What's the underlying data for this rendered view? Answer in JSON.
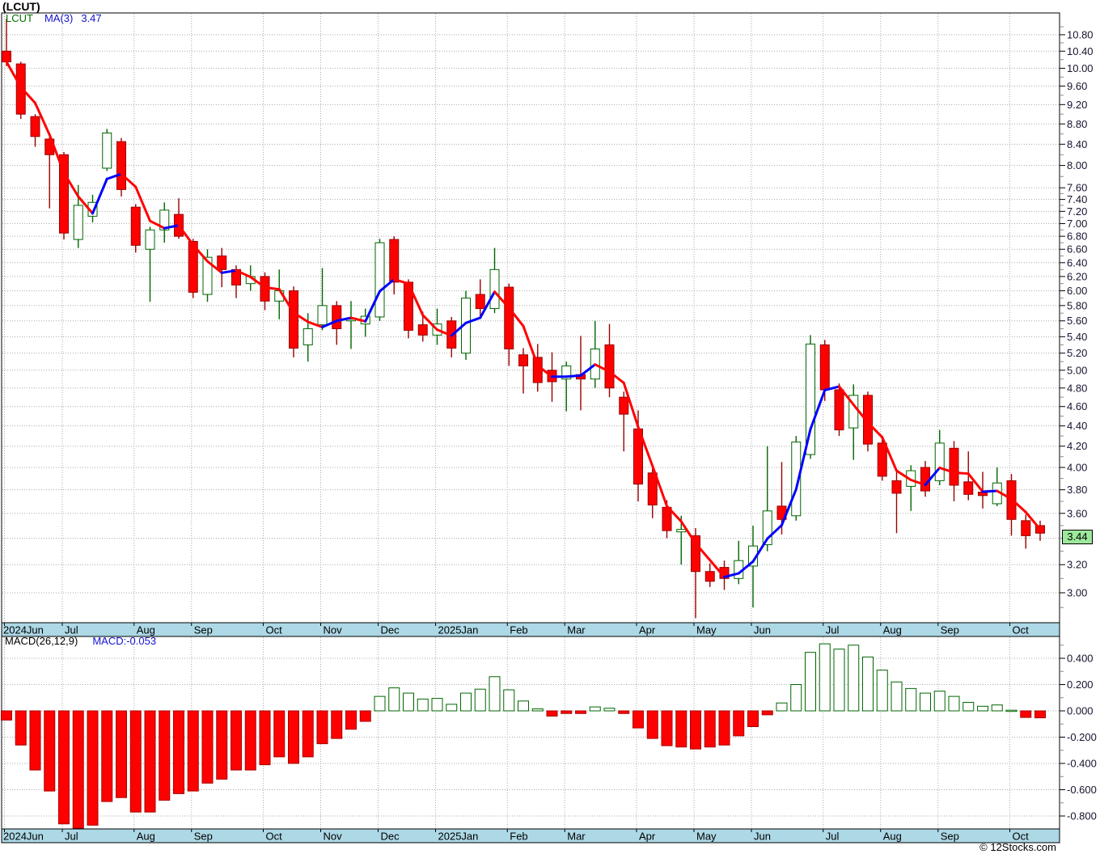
{
  "header": {
    "title": "(LCUT)"
  },
  "main_legend": {
    "symbol": "LCUT",
    "ma_label": "MA(3)",
    "ma_value": "3.47"
  },
  "macd_legend": {
    "label": "MACD(26,12,9)",
    "value_label": "MACD:-0.053"
  },
  "price_marker": {
    "value": "3.44"
  },
  "footer": {
    "copyright": "© 12Stocks.com"
  },
  "colors": {
    "candle_up_stroke": "#006600",
    "candle_up_fill": "#ffffff",
    "candle_down_fill": "#ff0000",
    "candle_down_stroke": "#990000",
    "ma_up": "#0000ff",
    "ma_down": "#ff0000",
    "macd_pos_stroke": "#006600",
    "macd_pos_fill": "#ffffff",
    "macd_neg_fill": "#ff0000",
    "macd_neg_stroke": "#aa0000",
    "month_strip": "#add8e6",
    "grid": "#aaaaaa",
    "price_marker_bg": "#9ce89c",
    "border": "#000000"
  },
  "chart_data": {
    "type": "candlestick",
    "symbol": "LCUT",
    "title": "(LCUT)",
    "ma_period": 3,
    "ma_last": 3.47,
    "last_price": 3.44,
    "macd_params": "26,12,9",
    "macd_last": -0.053,
    "price_axis_range": [
      2.8,
      11.35
    ],
    "macd_axis_range": [
      -0.95,
      0.58
    ],
    "months": [
      {
        "label": "2024Jun",
        "weeks": 4
      },
      {
        "label": "Jul",
        "weeks": 5
      },
      {
        "label": "Aug",
        "weeks": 4
      },
      {
        "label": "Sep",
        "weeks": 5
      },
      {
        "label": "Oct",
        "weeks": 4
      },
      {
        "label": "Nov",
        "weeks": 4
      },
      {
        "label": "Dec",
        "weeks": 4
      },
      {
        "label": "2025Jan",
        "weeks": 5
      },
      {
        "label": "Feb",
        "weeks": 4
      },
      {
        "label": "Mar",
        "weeks": 5
      },
      {
        "label": "Apr",
        "weeks": 4
      },
      {
        "label": "May",
        "weeks": 4
      },
      {
        "label": "Jun",
        "weeks": 5
      },
      {
        "label": "Jul",
        "weeks": 4
      },
      {
        "label": "Aug",
        "weeks": 4
      },
      {
        "label": "Sep",
        "weeks": 5
      },
      {
        "label": "Oct",
        "weeks": 3
      }
    ],
    "weeks_ohlc": [
      [
        10.4,
        11.2,
        10.05,
        10.15
      ],
      [
        10.1,
        10.15,
        8.9,
        9.0
      ],
      [
        8.95,
        9.0,
        8.35,
        8.55
      ],
      [
        8.5,
        8.55,
        7.25,
        8.2
      ],
      [
        8.2,
        8.25,
        6.75,
        6.85
      ],
      [
        6.75,
        7.65,
        6.62,
        7.3
      ],
      [
        7.12,
        7.48,
        7.02,
        7.35
      ],
      [
        7.95,
        8.7,
        7.9,
        8.62
      ],
      [
        8.45,
        8.52,
        7.45,
        7.57
      ],
      [
        7.27,
        7.32,
        6.55,
        6.66
      ],
      [
        6.6,
        6.95,
        5.85,
        6.9
      ],
      [
        6.9,
        7.35,
        6.7,
        7.22
      ],
      [
        7.15,
        7.42,
        6.76,
        6.8
      ],
      [
        6.72,
        6.76,
        5.9,
        5.98
      ],
      [
        5.95,
        6.6,
        5.85,
        6.48
      ],
      [
        6.5,
        6.62,
        6.05,
        6.3
      ],
      [
        6.3,
        6.36,
        5.9,
        6.08
      ],
      [
        6.1,
        6.36,
        6.0,
        6.2
      ],
      [
        6.2,
        6.26,
        5.74,
        5.86
      ],
      [
        5.86,
        6.3,
        5.62,
        6.0
      ],
      [
        6.0,
        6.06,
        5.15,
        5.26
      ],
      [
        5.3,
        5.7,
        5.1,
        5.5
      ],
      [
        5.55,
        6.32,
        5.48,
        5.8
      ],
      [
        5.8,
        5.86,
        5.3,
        5.5
      ],
      [
        5.6,
        5.86,
        5.25,
        5.62
      ],
      [
        5.56,
        5.76,
        5.4,
        5.66
      ],
      [
        5.65,
        6.76,
        5.6,
        6.7
      ],
      [
        6.75,
        6.8,
        5.95,
        6.12
      ],
      [
        6.12,
        6.16,
        5.38,
        5.48
      ],
      [
        5.55,
        5.72,
        5.34,
        5.42
      ],
      [
        5.42,
        5.76,
        5.3,
        5.56
      ],
      [
        5.6,
        5.65,
        5.15,
        5.26
      ],
      [
        5.2,
        6.0,
        5.12,
        5.9
      ],
      [
        5.95,
        6.16,
        5.64,
        5.76
      ],
      [
        5.76,
        6.62,
        5.7,
        6.3
      ],
      [
        6.05,
        6.1,
        5.05,
        5.25
      ],
      [
        5.18,
        5.26,
        4.74,
        5.05
      ],
      [
        5.15,
        5.31,
        4.76,
        4.86
      ],
      [
        5.0,
        5.21,
        4.65,
        4.87
      ],
      [
        4.9,
        5.1,
        4.55,
        5.05
      ],
      [
        4.95,
        5.41,
        4.56,
        4.9
      ],
      [
        4.9,
        5.6,
        4.8,
        5.25
      ],
      [
        5.3,
        5.56,
        4.7,
        4.8
      ],
      [
        4.7,
        4.76,
        4.15,
        4.52
      ],
      [
        4.37,
        4.56,
        3.7,
        3.85
      ],
      [
        3.95,
        4.01,
        3.56,
        3.67
      ],
      [
        3.65,
        3.71,
        3.4,
        3.46
      ],
      [
        3.45,
        3.58,
        3.2,
        3.47
      ],
      [
        3.42,
        3.48,
        2.83,
        3.15
      ],
      [
        3.15,
        3.21,
        3.04,
        3.08
      ],
      [
        3.18,
        3.23,
        3.02,
        3.1
      ],
      [
        3.1,
        3.38,
        3.06,
        3.23
      ],
      [
        3.19,
        3.5,
        2.9,
        3.34
      ],
      [
        3.35,
        4.2,
        3.3,
        3.62
      ],
      [
        3.66,
        4.05,
        3.43,
        3.55
      ],
      [
        3.58,
        4.3,
        3.54,
        4.24
      ],
      [
        4.12,
        5.42,
        4.08,
        5.31
      ],
      [
        5.3,
        5.36,
        4.66,
        4.78
      ],
      [
        4.78,
        4.85,
        4.3,
        4.36
      ],
      [
        4.38,
        4.84,
        4.07,
        4.72
      ],
      [
        4.72,
        4.76,
        4.15,
        4.22
      ],
      [
        4.23,
        4.29,
        3.88,
        3.92
      ],
      [
        3.88,
        3.96,
        3.44,
        3.77
      ],
      [
        3.83,
        4.02,
        3.62,
        3.97
      ],
      [
        4.0,
        4.06,
        3.74,
        3.79
      ],
      [
        3.88,
        4.36,
        3.84,
        4.23
      ],
      [
        4.18,
        4.25,
        3.7,
        3.84
      ],
      [
        3.87,
        4.15,
        3.71,
        3.76
      ],
      [
        3.78,
        3.96,
        3.64,
        3.75
      ],
      [
        3.68,
        4.0,
        3.66,
        3.86
      ],
      [
        3.88,
        3.94,
        3.42,
        3.55
      ],
      [
        3.54,
        3.59,
        3.32,
        3.42
      ],
      [
        3.5,
        3.54,
        3.38,
        3.44
      ]
    ],
    "macd_histogram": [
      -0.07,
      -0.26,
      -0.45,
      -0.61,
      -0.86,
      -0.96,
      -0.87,
      -0.69,
      -0.66,
      -0.77,
      -0.77,
      -0.68,
      -0.63,
      -0.61,
      -0.55,
      -0.52,
      -0.45,
      -0.45,
      -0.41,
      -0.35,
      -0.4,
      -0.35,
      -0.25,
      -0.21,
      -0.14,
      -0.08,
      0.11,
      0.175,
      0.135,
      0.09,
      0.095,
      0.05,
      0.135,
      0.165,
      0.26,
      0.16,
      0.075,
      0.015,
      -0.04,
      -0.02,
      -0.02,
      0.03,
      0.02,
      -0.02,
      -0.13,
      -0.21,
      -0.265,
      -0.275,
      -0.29,
      -0.275,
      -0.26,
      -0.19,
      -0.12,
      -0.03,
      0.06,
      0.2,
      0.445,
      0.51,
      0.47,
      0.5,
      0.41,
      0.31,
      0.22,
      0.17,
      0.135,
      0.15,
      0.11,
      0.065,
      0.035,
      0.045,
      0.005,
      -0.05,
      -0.053
    ],
    "price_axis_ticks": [
      "10.80",
      "10.40",
      "10.00",
      "9.60",
      "9.20",
      "8.80",
      "8.40",
      "8.00",
      "7.60",
      "7.40",
      "7.20",
      "7.00",
      "6.80",
      "6.60",
      "6.40",
      "6.20",
      "6.00",
      "5.80",
      "5.60",
      "5.40",
      "5.20",
      "5.00",
      "4.80",
      "4.60",
      "4.40",
      "4.20",
      "4.00",
      "3.80",
      "3.60",
      "3.20",
      "3.00"
    ],
    "price_axis_minor": [
      11.0,
      10.6,
      10.2,
      9.8,
      9.4,
      9.0,
      8.6,
      8.2,
      7.8,
      7.5,
      7.3,
      7.1,
      6.9,
      6.7,
      6.5,
      6.3,
      6.1,
      5.9,
      5.7,
      5.5,
      5.3,
      5.1,
      4.9,
      4.7,
      4.5,
      4.3,
      4.1,
      3.9,
      3.7,
      3.5,
      3.4,
      3.3,
      3.1,
      2.9
    ],
    "macd_axis_ticks": [
      "0.400",
      "0.200",
      "0.000",
      "-0.200",
      "-0.400",
      "-0.600",
      "-0.800"
    ],
    "macd_axis_minor": [
      0.5,
      0.3,
      0.1,
      -0.1,
      -0.3,
      -0.5,
      -0.7,
      -0.9
    ]
  }
}
